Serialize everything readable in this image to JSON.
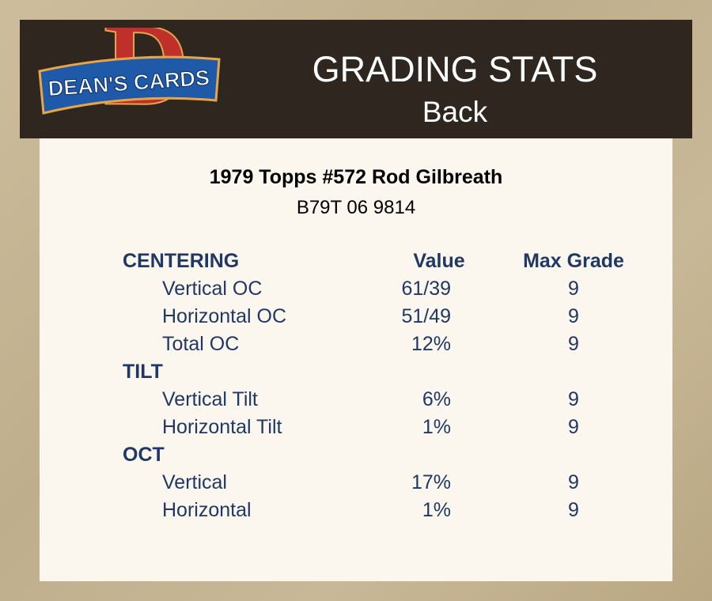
{
  "header": {
    "logo": {
      "letter": "D",
      "text": "DEAN'S CARDS"
    },
    "title": "GRADING STATS",
    "subtitle": "Back"
  },
  "card": {
    "name": "1979 Topps #572 Rod Gilbreath",
    "serial": "B79T 06 9814"
  },
  "table": {
    "columns": [
      "Value",
      "Max Grade"
    ],
    "sections": [
      {
        "title": "CENTERING",
        "rows": [
          [
            "Vertical OC",
            "61/39",
            9
          ],
          [
            "Horizontal OC",
            "51/49",
            9
          ],
          [
            "Total OC",
            "12%",
            9
          ]
        ]
      },
      {
        "title": "TILT",
        "rows": [
          [
            "Vertical Tilt",
            "6%",
            9
          ],
          [
            "Horizontal Tilt",
            "1%",
            9
          ]
        ]
      },
      {
        "title": "OCT",
        "rows": [
          [
            "Vertical",
            "17%",
            9
          ],
          [
            "Horizontal",
            "1%",
            9
          ]
        ]
      }
    ]
  }
}
